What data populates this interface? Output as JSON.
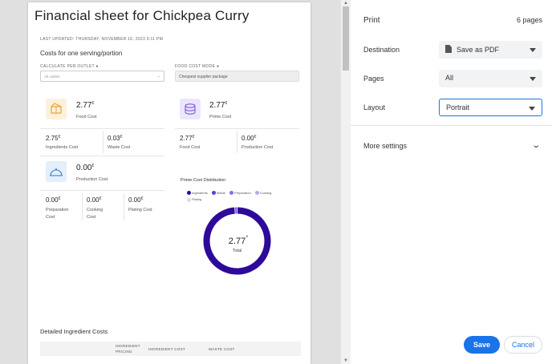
{
  "sheet": {
    "title": "Financial sheet for Chickpea Curry",
    "last_updated": "LAST UPDATED: THURSDAY, NOVEMBER 16, 2023 9:11 PM",
    "section_title": "Costs for one serving/portion",
    "calc_label": "CALCULATE PER OUTLET",
    "calc_value": "All outlets",
    "mode_label": "FOOD COST MODE",
    "mode_value": "Cheapest supplier package",
    "currency": "€",
    "food_cost": {
      "value": "2.77",
      "label": "Food Cost"
    },
    "ingredients_cost": {
      "value": "2.75",
      "label": "Ingredients Cost"
    },
    "waste_cost": {
      "value": "0.03",
      "label": "Waste Cost"
    },
    "prime_cost": {
      "value": "2.77",
      "label": "Prime Cost"
    },
    "prime_food_cost": {
      "value": "2.77",
      "label": "Food Cost"
    },
    "prime_production_cost": {
      "value": "0.00",
      "label": "Production Cost"
    },
    "production_cost": {
      "value": "0.00",
      "label": "Production Cost"
    },
    "preparation_cost": {
      "value": "0.00",
      "label1": "Preparation",
      "label2": "Cost"
    },
    "cooking_cost": {
      "value": "0.00",
      "label1": "Cooking",
      "label2": "Cost"
    },
    "plating_cost": {
      "value": "0.00",
      "label": "Plating Cost"
    },
    "detailed_title": "Detailed Ingredient Costs",
    "table_headers": {
      "pricing1": "INGREDIENT",
      "pricing2": "PRICING",
      "ingredient_cost": "INGREDIENT COST",
      "waste_cost": "WASTE COST"
    }
  },
  "chart_data": {
    "type": "pie",
    "title": "Prime Cost Distribution",
    "categories": [
      "Ingredients",
      "Waste",
      "Preparation",
      "Cooking",
      "Plating"
    ],
    "values": [
      2.75,
      0.03,
      0,
      0,
      0
    ],
    "colors": [
      "#2e0a9a",
      "#5a3dd6",
      "#8a6ff0",
      "#b8a6f5",
      "#dcdcdc"
    ],
    "center_value": "2.77",
    "center_unit": "€",
    "center_label": "Total",
    "legend_position": "top"
  },
  "print_panel": {
    "title": "Print",
    "pages_count": "6 pages",
    "destination_label": "Destination",
    "destination_value": "Save as PDF",
    "pages_label": "Pages",
    "pages_value": "All",
    "layout_label": "Layout",
    "layout_value": "Portrait",
    "more_settings": "More settings",
    "save_label": "Save",
    "cancel_label": "Cancel",
    "accent": "#1a73e8"
  }
}
